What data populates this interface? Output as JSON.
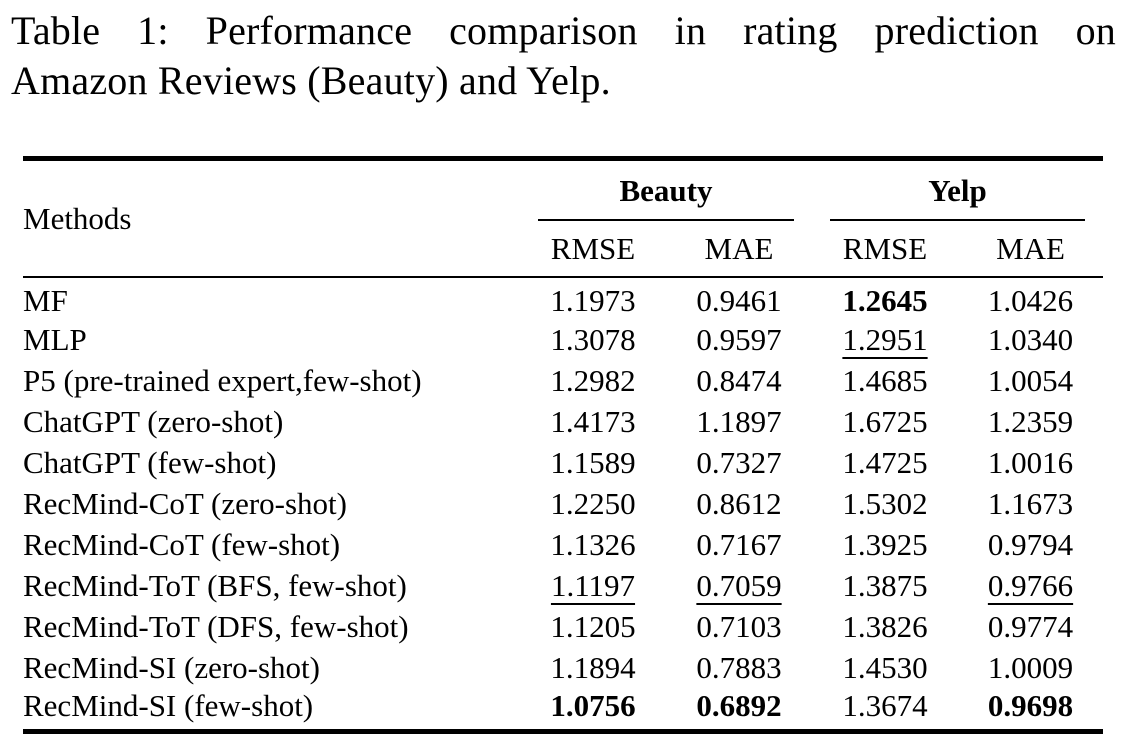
{
  "caption": {
    "line1": "Table 1: Performance comparison in rating prediction on",
    "line2": "Amazon Reviews (Beauty) and Yelp."
  },
  "colors": {
    "text": "#000000",
    "background": "#ffffff",
    "rule": "#000000"
  },
  "table": {
    "methods_header": "Methods",
    "groups": [
      {
        "label": "Beauty",
        "columns": [
          "RMSE",
          "MAE"
        ]
      },
      {
        "label": "Yelp",
        "columns": [
          "RMSE",
          "MAE"
        ]
      }
    ],
    "rows": [
      {
        "method": "MF",
        "cells": [
          {
            "text": "1.1973"
          },
          {
            "text": "0.9461"
          },
          {
            "text": "1.2645",
            "em": "bold"
          },
          {
            "text": "1.0426"
          }
        ]
      },
      {
        "method": "MLP",
        "cells": [
          {
            "text": "1.3078"
          },
          {
            "text": "0.9597"
          },
          {
            "text": "1.2951",
            "em": "underline"
          },
          {
            "text": "1.0340"
          }
        ]
      },
      {
        "method": "P5 (pre-trained expert,few-shot)",
        "cells": [
          {
            "text": "1.2982"
          },
          {
            "text": "0.8474"
          },
          {
            "text": "1.4685"
          },
          {
            "text": "1.0054"
          }
        ]
      },
      {
        "method": "ChatGPT (zero-shot)",
        "cells": [
          {
            "text": "1.4173"
          },
          {
            "text": "1.1897"
          },
          {
            "text": "1.6725"
          },
          {
            "text": "1.2359"
          }
        ]
      },
      {
        "method": "ChatGPT (few-shot)",
        "cells": [
          {
            "text": "1.1589"
          },
          {
            "text": "0.7327"
          },
          {
            "text": "1.4725"
          },
          {
            "text": "1.0016"
          }
        ]
      },
      {
        "method": "RecMind-CoT (zero-shot)",
        "cells": [
          {
            "text": "1.2250"
          },
          {
            "text": "0.8612"
          },
          {
            "text": "1.5302"
          },
          {
            "text": "1.1673"
          }
        ]
      },
      {
        "method": "RecMind-CoT (few-shot)",
        "cells": [
          {
            "text": "1.1326"
          },
          {
            "text": "0.7167"
          },
          {
            "text": "1.3925"
          },
          {
            "text": "0.9794"
          }
        ]
      },
      {
        "method": "RecMind-ToT (BFS, few-shot)",
        "cells": [
          {
            "text": "1.1197",
            "em": "underline"
          },
          {
            "text": "0.7059",
            "em": "underline"
          },
          {
            "text": "1.3875"
          },
          {
            "text": "0.9766",
            "em": "underline"
          }
        ]
      },
      {
        "method": "RecMind-ToT (DFS, few-shot)",
        "cells": [
          {
            "text": "1.1205"
          },
          {
            "text": "0.7103"
          },
          {
            "text": "1.3826"
          },
          {
            "text": "0.9774"
          }
        ]
      },
      {
        "method": "RecMind-SI (zero-shot)",
        "cells": [
          {
            "text": "1.1894"
          },
          {
            "text": "0.7883"
          },
          {
            "text": "1.4530"
          },
          {
            "text": "1.0009"
          }
        ]
      },
      {
        "method": "RecMind-SI (few-shot)",
        "cells": [
          {
            "text": "1.0756",
            "em": "bold"
          },
          {
            "text": "0.6892",
            "em": "bold"
          },
          {
            "text": "1.3674"
          },
          {
            "text": "0.9698",
            "em": "bold"
          }
        ]
      }
    ]
  }
}
